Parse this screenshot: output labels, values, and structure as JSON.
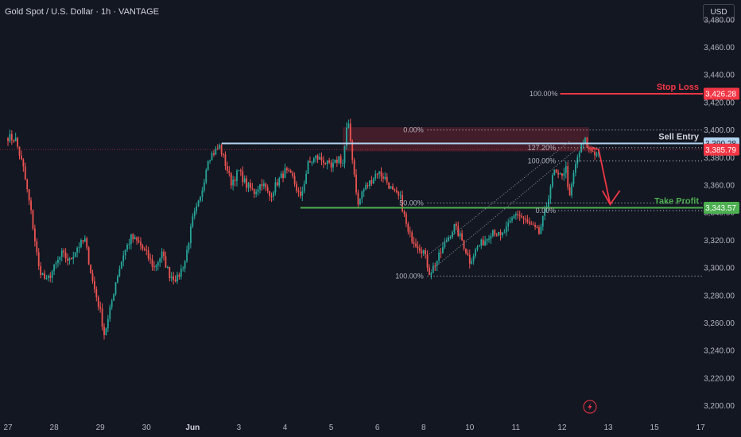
{
  "header": {
    "symbol_title": "Gold Spot / U.S. Dollar · 1h · VANTAGE",
    "currency_button": "USD"
  },
  "colors": {
    "background": "#131722",
    "up": "#26a69a",
    "down": "#ef5350",
    "stop": "#f23645",
    "take": "#4caf50",
    "entry": "#b2d4f0",
    "text": "#d1d4dc",
    "axis_text": "#b2b5be"
  },
  "chart_data": {
    "type": "candlestick",
    "y_axis": {
      "range": [
        3194,
        3492
      ],
      "ticks": [
        3200,
        3220,
        3240,
        3260,
        3280,
        3300,
        3320,
        3340,
        3360,
        3380,
        3400,
        3420,
        3440,
        3460,
        3480
      ],
      "tick_labels": [
        "3,200.00",
        "3,220.00",
        "3,240.00",
        "3,260.00",
        "3,280.00",
        "3,300.00",
        "3,320.00",
        "3,340.00",
        "3,360.00",
        "3,380.00",
        "3,400.00",
        "3,420.00",
        "3,440.00",
        "3,460.00",
        "3,480.00"
      ]
    },
    "x_axis": {
      "labels": [
        "27",
        "28",
        "29",
        "30",
        "Jun",
        "3",
        "4",
        "5",
        "6",
        "8",
        "10",
        "11",
        "12",
        "13",
        "15",
        "17"
      ],
      "bold_labels": [
        "Jun"
      ],
      "bar_indices": [
        0,
        24,
        48,
        72,
        96,
        120,
        144,
        168,
        192,
        216,
        240,
        264,
        288,
        312,
        336,
        360
      ]
    },
    "last_bar_index": 307,
    "anchors": [
      [
        0,
        3395
      ],
      [
        4,
        3393
      ],
      [
        8,
        3372
      ],
      [
        12,
        3340
      ],
      [
        16,
        3300
      ],
      [
        20,
        3290
      ],
      [
        24,
        3300
      ],
      [
        28,
        3310
      ],
      [
        32,
        3305
      ],
      [
        36,
        3315
      ],
      [
        40,
        3320
      ],
      [
        44,
        3290
      ],
      [
        48,
        3268
      ],
      [
        50,
        3252
      ],
      [
        52,
        3262
      ],
      [
        56,
        3290
      ],
      [
        60,
        3310
      ],
      [
        64,
        3322
      ],
      [
        68,
        3318
      ],
      [
        72,
        3310
      ],
      [
        76,
        3300
      ],
      [
        80,
        3310
      ],
      [
        84,
        3295
      ],
      [
        88,
        3292
      ],
      [
        92,
        3305
      ],
      [
        96,
        3335
      ],
      [
        100,
        3350
      ],
      [
        104,
        3380
      ],
      [
        108,
        3385
      ],
      [
        110,
        3388
      ],
      [
        112,
        3380
      ],
      [
        116,
        3362
      ],
      [
        120,
        3370
      ],
      [
        124,
        3360
      ],
      [
        128,
        3355
      ],
      [
        132,
        3362
      ],
      [
        136,
        3352
      ],
      [
        140,
        3362
      ],
      [
        144,
        3370
      ],
      [
        148,
        3365
      ],
      [
        152,
        3350
      ],
      [
        156,
        3375
      ],
      [
        160,
        3380
      ],
      [
        164,
        3378
      ],
      [
        168,
        3372
      ],
      [
        172,
        3380
      ],
      [
        174,
        3376
      ],
      [
        176,
        3400
      ],
      [
        177,
        3402
      ],
      [
        178,
        3392
      ],
      [
        180,
        3368
      ],
      [
        182,
        3345
      ],
      [
        184,
        3355
      ],
      [
        188,
        3362
      ],
      [
        192,
        3370
      ],
      [
        196,
        3365
      ],
      [
        200,
        3355
      ],
      [
        204,
        3350
      ],
      [
        208,
        3325
      ],
      [
        212,
        3318
      ],
      [
        216,
        3312
      ],
      [
        219,
        3297
      ],
      [
        220,
        3298
      ],
      [
        224,
        3308
      ],
      [
        228,
        3320
      ],
      [
        232,
        3330
      ],
      [
        236,
        3320
      ],
      [
        240,
        3305
      ],
      [
        244,
        3315
      ],
      [
        248,
        3320
      ],
      [
        252,
        3328
      ],
      [
        256,
        3322
      ],
      [
        260,
        3330
      ],
      [
        264,
        3340
      ],
      [
        268,
        3335
      ],
      [
        272,
        3330
      ],
      [
        276,
        3325
      ],
      [
        280,
        3345
      ],
      [
        282,
        3360
      ],
      [
        284,
        3370
      ],
      [
        286,
        3365
      ],
      [
        290,
        3372
      ],
      [
        292,
        3350
      ],
      [
        294,
        3368
      ],
      [
        296,
        3380
      ],
      [
        298,
        3388
      ],
      [
        300,
        3392
      ],
      [
        302,
        3385
      ],
      [
        304,
        3385
      ],
      [
        306,
        3382
      ],
      [
        307,
        3386
      ]
    ],
    "levels": {
      "stop_loss": {
        "label": "Stop Loss",
        "price": 3426.28,
        "price_label": "3,426.28"
      },
      "sell_entry": {
        "label": "Sell Entry",
        "price": 3390.28,
        "price_label": "3,390.28"
      },
      "current": {
        "price": 3385.79,
        "price_label": "3,385.79"
      },
      "take_profit": {
        "label": "Take Profit",
        "price": 3343.57,
        "price_label": "3,343.57"
      }
    },
    "fib_left": {
      "price_0": 3400,
      "price_100": 3294,
      "level_labels": [
        "0.00%",
        "50.00%",
        "100.00%"
      ]
    },
    "fib_right": {
      "level_labels": [
        "100.00%",
        "127.20%",
        "100.00%",
        "0.00%"
      ],
      "prices": [
        3426.28,
        3387.2,
        3377.5,
        3341.5
      ]
    },
    "annotations": {
      "arrow_direction": "down",
      "grid": false,
      "flash_icon": "lightning-icon"
    }
  }
}
